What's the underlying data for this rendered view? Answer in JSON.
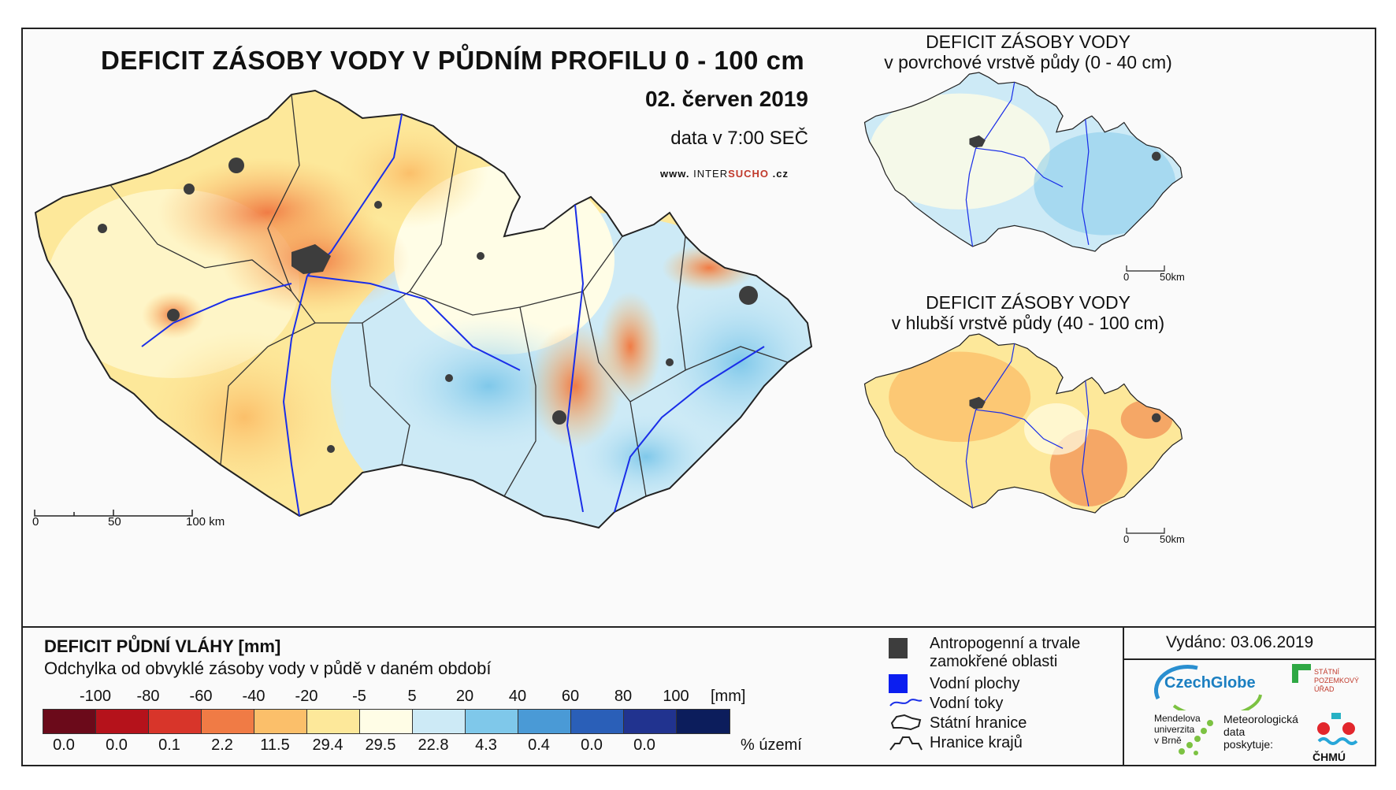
{
  "header": {
    "title": "DEFICIT ZÁSOBY VODY V PŮDNÍM PROFILU 0 - 100 cm",
    "date": "02. červen 2019",
    "subtitle": "data v 7:00 SEČ",
    "web_prefix": "www.",
    "web_intersucho_a": "INTER",
    "web_intersucho_b": "SUCHO",
    "web_suffix": ".cz"
  },
  "main_map": {
    "scale_labels": [
      "0",
      "50",
      "100 km"
    ]
  },
  "surface_map": {
    "title_line1": "DEFICIT ZÁSOBY VODY",
    "title_line2": "v povrchové vrstvě půdy (0 - 40 cm)",
    "scale_labels": [
      "0",
      "50km"
    ]
  },
  "deep_map": {
    "title_line1": "DEFICIT ZÁSOBY VODY",
    "title_line2": "v hlubší vrstvě půdy (40 - 100 cm)",
    "scale_labels": [
      "0",
      "50km"
    ]
  },
  "legend": {
    "title": "DEFICIT PŮDNÍ VLÁHY [mm]",
    "subtitle": "Odchylka od obvyklé zásoby vody v půdě v daném období",
    "tick_labels": [
      "-100",
      "-80",
      "-60",
      "-40",
      "-20",
      "-5",
      "5",
      "20",
      "40",
      "60",
      "80",
      "100"
    ],
    "unit": "[mm]",
    "colors": [
      "#6b0a1a",
      "#b5121b",
      "#d8352a",
      "#f07b45",
      "#fbbf6a",
      "#fde89a",
      "#fffde6",
      "#cdeaf6",
      "#7fc8ea",
      "#4a9ad6",
      "#2a5fb8",
      "#21338f",
      "#0c1d5c"
    ],
    "percent_values": [
      "0.0",
      "0.0",
      "0.1",
      "2.2",
      "11.5",
      "29.4",
      "29.5",
      "22.8",
      "4.3",
      "0.4",
      "0.0",
      "0.0"
    ],
    "percent_unit": "% území"
  },
  "key": {
    "anthropogenic_line1": "Antropogenní a trvale",
    "anthropogenic_line2": "zamokřené oblasti",
    "water_bodies": "Vodní plochy",
    "rivers": "Vodní toky",
    "state_border": "Státní hranice",
    "region_border": "Hranice krajů"
  },
  "issued": {
    "label": "Vydáno: 03.06.2019"
  },
  "logos": {
    "czechglobe": "CzechGlobe",
    "spu_line1": "STÁTNÍ",
    "spu_line2": "POZEMKOVÝ",
    "spu_line3": "ÚŘAD",
    "mendelu_line1": "Mendelova",
    "mendelu_line2": "univerzita",
    "mendelu_line3": "v Brně",
    "met_line1": "Meteorologická",
    "met_line2": "data",
    "met_line3": "poskytuje:",
    "chmu": "ČHMÚ"
  }
}
